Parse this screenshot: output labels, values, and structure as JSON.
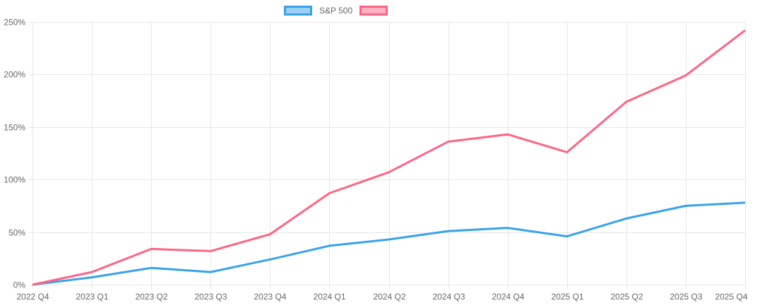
{
  "legend": {
    "position": "top",
    "items": [
      {
        "label": "S&P 500",
        "border_color": "#36A2EB",
        "fill_color": "#9AD1F5"
      },
      {
        "label": "",
        "border_color": "#FF6384",
        "fill_color": "#FFB1C2"
      }
    ]
  },
  "chart_data": {
    "type": "line",
    "title": "",
    "xlabel": "",
    "ylabel": "",
    "categories": [
      "2022 Q4",
      "2023 Q1",
      "2023 Q2",
      "2023 Q3",
      "2023 Q4",
      "2024 Q1",
      "2024 Q2",
      "2024 Q3",
      "2024 Q4",
      "2025 Q1",
      "2025 Q2",
      "2025 Q3",
      "2025 Q4"
    ],
    "series": [
      {
        "name": "S&P 500",
        "color": "#36A2EB",
        "values": [
          0,
          7,
          16,
          12,
          24,
          37,
          43,
          51,
          54,
          46,
          63,
          75,
          78
        ]
      },
      {
        "name": "",
        "color": "#FF6384",
        "values": [
          0,
          12,
          34,
          32,
          48,
          87,
          107,
          136,
          143,
          126,
          174,
          199,
          242
        ]
      }
    ],
    "ylim": [
      0,
      250
    ],
    "y_ticks": [
      0,
      50,
      100,
      150,
      200,
      250
    ],
    "y_tick_labels": [
      "0%",
      "50%",
      "100%",
      "150%",
      "200%",
      "250%"
    ],
    "grid": true,
    "legend_position": "top",
    "line_width": 3,
    "styles": {
      "grid_color": "#E6E6E6",
      "tick_label_color": "#666666",
      "tick_font_size": 12,
      "background": "#FFFFFF"
    }
  }
}
